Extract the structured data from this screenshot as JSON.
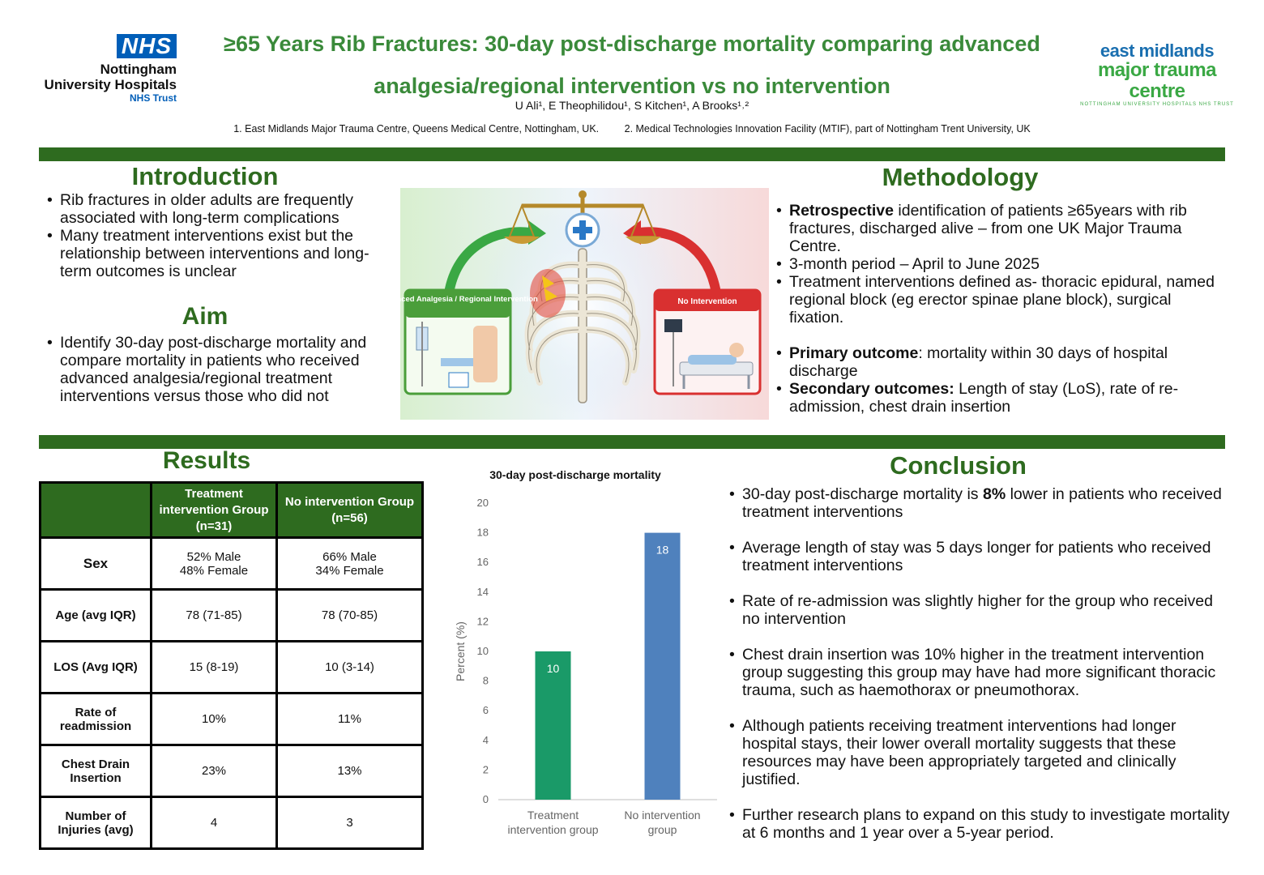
{
  "header": {
    "nhs_logo": {
      "badge": "NHS",
      "line1": "Nottingham",
      "line2": "University Hospitals",
      "line3": "NHS Trust"
    },
    "emtc_logo": {
      "line1": "east midlands",
      "line2": "major trauma centre",
      "line3": "NOTTINGHAM UNIVERSITY HOSPITALS NHS TRUST"
    },
    "title_line1": "≥65 Years Rib Fractures: 30-day post-discharge mortality comparing advanced",
    "title_line2": "analgesia/regional intervention vs no intervention",
    "authors": "U Ali¹, E Theophilidou¹, S Kitchen¹, A Brooks¹˒²",
    "affiliation1": "1. East Midlands Major Trauma Centre, Queens Medical Centre, Nottingham, UK.",
    "affiliation2": "2. Medical Technologies Innovation Facility (MTIF), part of Nottingham Trent University, UK"
  },
  "introduction": {
    "heading": "Introduction",
    "bullets": [
      "Rib fractures in older adults are frequently associated with long-term complications",
      "Many treatment interventions exist but the relationship between interventions and long-term outcomes is unclear"
    ]
  },
  "aim": {
    "heading": "Aim",
    "bullets": [
      "Identify 30-day post-discharge mortality and compare mortality in patients who received advanced analgesia/regional treatment interventions versus those who did not"
    ]
  },
  "illustration": {
    "left_label": "Advanced Analgesia / Regional Intervention",
    "right_label": "No Intervention"
  },
  "methodology": {
    "heading": "Methodology",
    "b1_bold": "Retrospective",
    "b1_rest": " identification of patients ≥65years  with rib fractures, discharged alive – from one UK Major Trauma Centre.",
    "b2": "3-month period – April to June 2025",
    "b3": "Treatment interventions defined as- thoracic epidural, named regional block (eg erector spinae plane block), surgical fixation.",
    "b4_bold": "Primary outcome",
    "b4_rest": ": mortality within 30 days of hospital discharge",
    "b5_bold": "Secondary outcomes:",
    "b5_rest": " Length of stay (LoS), rate of re-admission, chest drain insertion"
  },
  "results": {
    "heading": "Results",
    "table": {
      "col1": "Treatment intervention Group (n=31)",
      "col2": "No intervention Group (n=56)",
      "rows": [
        {
          "label": "Sex",
          "a1": "52% Male",
          "a2": "48% Female",
          "b1": "66% Male",
          "b2": "34% Female"
        },
        {
          "label": "Age (avg IQR)",
          "a": "78 (71-85)",
          "b": "78 (70-85)"
        },
        {
          "label": "LOS (Avg IQR)",
          "a": "15 (8-19)",
          "b": "10 (3-14)"
        },
        {
          "label": "Rate of readmission",
          "a": "10%",
          "b": "11%"
        },
        {
          "label": "Chest Drain Insertion",
          "a": "23%",
          "b": "13%"
        },
        {
          "label": "Number of Injuries (avg)",
          "a": "4",
          "b": "3"
        }
      ]
    }
  },
  "chart_data": {
    "type": "bar",
    "title": "30-day post-discharge mortality",
    "ylabel": "Percent (%)",
    "xlabel": "",
    "categories": [
      "Treatment intervention group",
      "No intervention group"
    ],
    "category_lines": [
      [
        "Treatment",
        "intervention group"
      ],
      [
        "No intervention",
        "group"
      ]
    ],
    "values": [
      10,
      18
    ],
    "colors": [
      "#1a9a68",
      "#4f81bd"
    ],
    "ylim": [
      0,
      20
    ],
    "yticks": [
      0,
      2,
      4,
      6,
      8,
      10,
      12,
      14,
      16,
      18,
      20
    ],
    "grid": false,
    "data_labels": true
  },
  "conclusion": {
    "heading": "Conclusion",
    "c1_pre": "30-day post-discharge mortality is ",
    "c1_bold": "8%",
    "c1_post": " lower in patients who received treatment interventions",
    "c2": "Average length of stay was 5 days longer for patients who received treatment interventions",
    "c3": "Rate of re-admission was slightly higher for the group who received no intervention",
    "c4": "Chest drain insertion was 10% higher in the treatment intervention group suggesting this group may have had more significant thoracic trauma, such as haemothorax or pneumothorax.",
    "c5": "Although patients receiving treatment interventions had longer hospital stays, their lower overall mortality suggests that these resources may have been appropriately targeted and clinically justified.",
    "c6": "Further research plans to expand on this study to investigate mortality at 6 months and 1 year over a 5-year period."
  }
}
